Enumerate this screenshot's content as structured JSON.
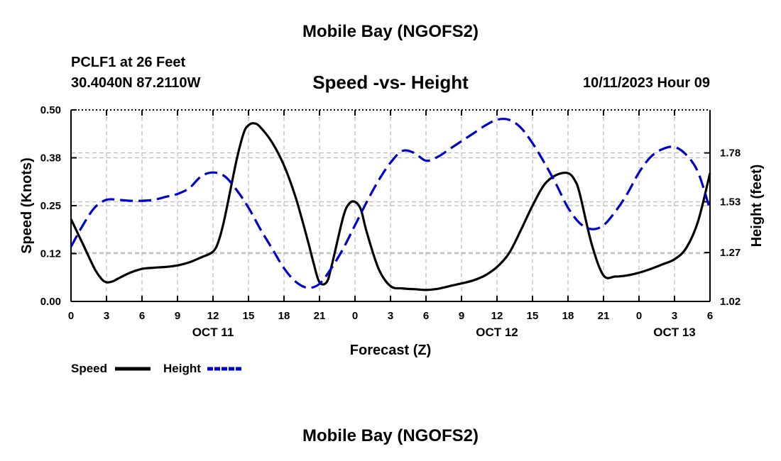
{
  "header": {
    "title": "Mobile Bay (NGOFS2)",
    "station": "PCLF1 at 26 Feet",
    "coordinates": "30.4040N  87.2110W",
    "subtitle": "Speed -vs- Height",
    "datetime": "10/11/2023 Hour 09"
  },
  "footer": {
    "title": "Mobile Bay (NGOFS2)"
  },
  "colors": {
    "speed": "#000000",
    "height": "#0000cc",
    "grid": "#bbbbbb"
  },
  "chart_data": {
    "type": "line",
    "title": "Speed -vs- Height",
    "xlabel": "Forecast (Z)",
    "ylabel": "Speed (Knots)",
    "y2label": "Height (feet)",
    "x_unit": "hours from 2023-10-11 00Z",
    "xlim": [
      0,
      54
    ],
    "ylim": [
      0,
      0.5
    ],
    "y2lim": [
      1.02,
      2.0
    ],
    "x_ticks": [
      0,
      3,
      6,
      9,
      12,
      15,
      18,
      21,
      24,
      27,
      30,
      33,
      36,
      39,
      42,
      45,
      48,
      51,
      54
    ],
    "x_tick_labels": [
      "0",
      "3",
      "6",
      "9",
      "12",
      "15",
      "18",
      "21",
      "0",
      "3",
      "6",
      "9",
      "12",
      "15",
      "18",
      "21",
      "0",
      "3",
      "6"
    ],
    "date_labels": [
      {
        "x": 12,
        "label": "OCT 11"
      },
      {
        "x": 36,
        "label": "OCT 12"
      },
      {
        "x": 51,
        "label": "OCT 13"
      }
    ],
    "y_ticks": [
      0.0,
      0.125,
      0.25,
      0.375,
      0.5
    ],
    "y_tick_labels": [
      "0.00",
      "0.12",
      "0.25",
      "0.38",
      "0.50"
    ],
    "y2_ticks": [
      1.02,
      1.27,
      1.53,
      1.78
    ],
    "y2_tick_labels": [
      "1.02",
      "1.27",
      "1.53",
      "1.78"
    ],
    "grid": true,
    "legend_position": "bottom-left",
    "series": [
      {
        "name": "Speed",
        "axis": "left",
        "style": "solid",
        "x": [
          0,
          1,
          2,
          2.6,
          3,
          3.5,
          4,
          5,
          6,
          7,
          8,
          9,
          10,
          11,
          12,
          12.5,
          13,
          14,
          14.6,
          15,
          15.5,
          16,
          17,
          18,
          19,
          20,
          20.5,
          21,
          21.6,
          22,
          23,
          23.5,
          24,
          24.5,
          25,
          26,
          27,
          28,
          29,
          30,
          31,
          32,
          33,
          34,
          35,
          36,
          37,
          38,
          39,
          40,
          41,
          42,
          42.6,
          43,
          44,
          45,
          46,
          47,
          48,
          49,
          50,
          51,
          52,
          53,
          54
        ],
        "values": [
          0.215,
          0.15,
          0.085,
          0.058,
          0.05,
          0.052,
          0.06,
          0.075,
          0.085,
          0.088,
          0.09,
          0.094,
          0.102,
          0.115,
          0.13,
          0.16,
          0.22,
          0.37,
          0.44,
          0.46,
          0.465,
          0.455,
          0.415,
          0.355,
          0.27,
          0.16,
          0.1,
          0.05,
          0.05,
          0.09,
          0.22,
          0.255,
          0.26,
          0.24,
          0.18,
          0.085,
          0.04,
          0.034,
          0.032,
          0.03,
          0.033,
          0.04,
          0.047,
          0.055,
          0.068,
          0.09,
          0.125,
          0.185,
          0.25,
          0.305,
          0.33,
          0.335,
          0.315,
          0.28,
          0.15,
          0.068,
          0.065,
          0.068,
          0.075,
          0.085,
          0.097,
          0.11,
          0.14,
          0.21,
          0.335
        ]
      },
      {
        "name": "Height",
        "axis": "right",
        "style": "dashed",
        "x": [
          0,
          1,
          2,
          3,
          4,
          5,
          6,
          7,
          8,
          9,
          10,
          11,
          12,
          13,
          14,
          15,
          16,
          17,
          18,
          19,
          20,
          21,
          22,
          23,
          24,
          25,
          26,
          27,
          28,
          29,
          30,
          31,
          32,
          33,
          34,
          35,
          36,
          37,
          38,
          39,
          40,
          41,
          42,
          43,
          44,
          45,
          46,
          47,
          48,
          49,
          50,
          51,
          52,
          53,
          54
        ],
        "values": [
          1.3,
          1.41,
          1.5,
          1.54,
          1.54,
          1.535,
          1.535,
          1.54,
          1.555,
          1.57,
          1.6,
          1.66,
          1.68,
          1.66,
          1.59,
          1.5,
          1.39,
          1.29,
          1.19,
          1.12,
          1.09,
          1.11,
          1.19,
          1.29,
          1.41,
          1.53,
          1.64,
          1.73,
          1.79,
          1.78,
          1.74,
          1.76,
          1.8,
          1.84,
          1.88,
          1.92,
          1.95,
          1.95,
          1.91,
          1.83,
          1.73,
          1.62,
          1.5,
          1.42,
          1.39,
          1.41,
          1.48,
          1.57,
          1.68,
          1.76,
          1.8,
          1.81,
          1.77,
          1.68,
          1.49
        ]
      }
    ]
  }
}
